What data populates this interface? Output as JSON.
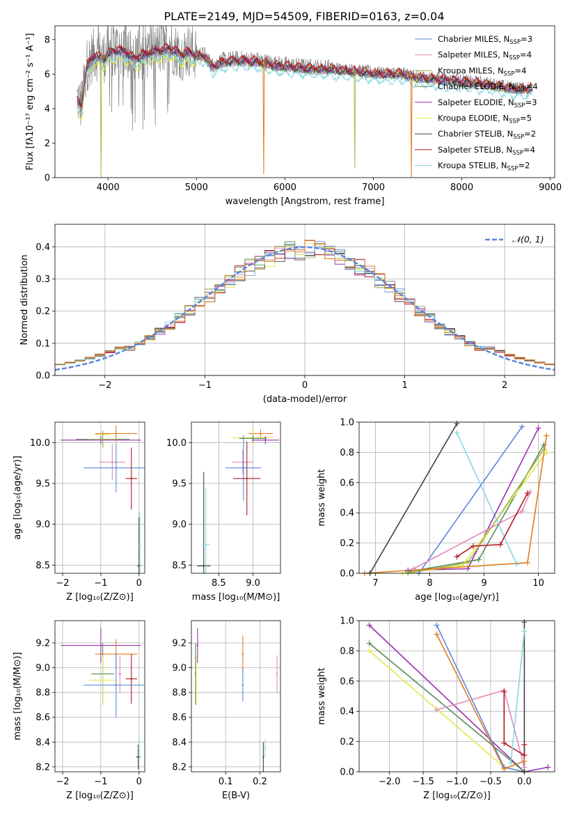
{
  "figure": {
    "title": "PLATE=2149, MJD=54509, FIBERID=0163, z=0.04"
  },
  "colors": {
    "chabrier_miles": "#5b86d8",
    "salpeter_miles": "#e08ab8",
    "kroupa_miles": "#a7b84a",
    "chabrier_elodie": "#5a8a5a",
    "salpeter_elodie": "#9a2fb0",
    "kroupa_elodie": "#e2e84a",
    "chabrier_stelib": "#404040",
    "salpeter_stelib": "#b2161e",
    "kroupa_stelib": "#86d8e0",
    "orange": "#e07b1e",
    "data_gray": "#808080",
    "normal_curve": "#5b86d8"
  },
  "chart_data": [
    {
      "id": "spectrum",
      "type": "line",
      "xlabel": "wavelength [Angstrom, rest frame]",
      "ylabel": "Flux [fλ10⁻¹⁷ erg cm⁻² s⁻¹ A⁻¹]",
      "xlim": [
        3400,
        9050
      ],
      "ylim": [
        0,
        8.8
      ],
      "xticks": [
        4000,
        5000,
        6000,
        7000,
        8000,
        9000
      ],
      "yticks": [
        0,
        2,
        4,
        6,
        8
      ],
      "grid": false,
      "legend_position": "top-right",
      "legend": [
        {
          "name": "Chabrier MILES, N",
          "sub": "SSP",
          "suffix": "=3",
          "color_key": "chabrier_miles"
        },
        {
          "name": "Salpeter MILES, N",
          "sub": "SSP",
          "suffix": "=4",
          "color_key": "salpeter_miles"
        },
        {
          "name": "Kroupa MILES, N",
          "sub": "SSP",
          "suffix": "=4",
          "color_key": "kroupa_miles"
        },
        {
          "name": "Chabrier ELODIE, N",
          "sub": "SSP",
          "suffix": "=4",
          "color_key": "chabrier_elodie"
        },
        {
          "name": "Salpeter ELODIE, N",
          "sub": "SSP",
          "suffix": "=3",
          "color_key": "salpeter_elodie"
        },
        {
          "name": "Kroupa ELODIE, N",
          "sub": "SSP",
          "suffix": "=5",
          "color_key": "kroupa_elodie"
        },
        {
          "name": "Chabrier STELIB, N",
          "sub": "SSP",
          "suffix": "=2",
          "color_key": "chabrier_stelib"
        },
        {
          "name": "Salpeter STELIB, N",
          "sub": "SSP",
          "suffix": "=4",
          "color_key": "salpeter_stelib"
        },
        {
          "name": "Kroupa STELIB, N",
          "sub": "SSP",
          "suffix": "=2",
          "color_key": "kroupa_stelib"
        }
      ],
      "continuum": {
        "x": [
          3650,
          3700,
          3760,
          3800,
          3850,
          3900,
          3950,
          4000,
          4100,
          4200,
          4300,
          4400,
          4500,
          4700,
          4850,
          4900,
          5000,
          5100,
          5175,
          5300,
          5500,
          5700,
          5900,
          6100,
          6300,
          6500,
          6700,
          6900,
          7100,
          7300,
          7500,
          7700,
          7900,
          8100,
          8300,
          8500,
          8700,
          8800
        ],
        "y": [
          4.6,
          4.2,
          6.5,
          6.9,
          7.2,
          7.1,
          7.0,
          7.3,
          7.5,
          7.4,
          7.0,
          7.2,
          7.4,
          7.6,
          7.2,
          7.4,
          7.2,
          7.1,
          6.5,
          6.8,
          6.9,
          6.8,
          6.6,
          6.5,
          6.4,
          6.4,
          6.3,
          6.2,
          6.1,
          6.1,
          5.9,
          5.8,
          5.7,
          5.6,
          5.5,
          5.3,
          5.2,
          5.3
        ]
      },
      "dips": [
        {
          "x": 5760,
          "y": 0.2,
          "color_key": "orange"
        },
        {
          "x": 6790,
          "y": 0.55,
          "color_key": "kroupa_miles"
        },
        {
          "x": 3920,
          "y": 0.0,
          "color_key": "kroupa_miles"
        },
        {
          "x": 7430,
          "y": 0.0,
          "color_key": "orange"
        }
      ]
    },
    {
      "id": "residuals",
      "type": "bar",
      "xlabel": "(data-model)/error",
      "ylabel": "Normed distribution",
      "xlim": [
        -2.5,
        2.5
      ],
      "ylim": [
        0,
        0.47
      ],
      "xticks": [
        -2,
        -1,
        0,
        1,
        2
      ],
      "yticks": [
        0.0,
        0.1,
        0.2,
        0.3,
        0.4
      ],
      "grid": true,
      "legend_position": "top-right",
      "legend": [
        {
          "name": "𝒩(0, 1)",
          "color_key": "normal_curve"
        }
      ],
      "bin_width": 0.1,
      "bin_start": -2.5,
      "normal_mean": 0,
      "normal_sigma": 1
    },
    {
      "id": "age_vs_Z",
      "type": "scatter",
      "xlabel": "Z [log₁₀(Z/Z⊙)]",
      "ylabel": "age  [log₁₀(age/yr)]",
      "xlim": [
        -2.2,
        0.15
      ],
      "ylim": [
        8.4,
        10.25
      ],
      "xticks": [
        -2,
        -1,
        0
      ],
      "yticks": [
        8.5,
        9.0,
        9.5,
        10.0
      ],
      "grid": true,
      "points": [
        {
          "x": -0.6,
          "y": 10.11,
          "xerr": 0.55,
          "yerr": 0.1,
          "color_key": "orange"
        },
        {
          "x": -0.95,
          "y": 10.1,
          "xerr": 0.2,
          "yerr": 0.05,
          "color_key": "kroupa_elodie"
        },
        {
          "x": -0.95,
          "y": 10.04,
          "xerr": 0.7,
          "yerr": 0.1,
          "color_key": "chabrier_elodie"
        },
        {
          "x": -1.0,
          "y": 10.03,
          "xerr": 1.05,
          "yerr": 0.05,
          "color_key": "salpeter_elodie"
        },
        {
          "x": -0.95,
          "y": 10.04,
          "xerr": 0.4,
          "yerr": 0.1,
          "color_key": "kroupa_miles"
        },
        {
          "x": -0.7,
          "y": 9.76,
          "xerr": 0.35,
          "yerr": 0.22,
          "color_key": "salpeter_miles"
        },
        {
          "x": -0.6,
          "y": 9.69,
          "xerr": 0.85,
          "yerr": 0.3,
          "color_key": "chabrier_miles"
        },
        {
          "x": -0.2,
          "y": 9.56,
          "xerr": 0.15,
          "yerr": 0.38,
          "color_key": "salpeter_stelib"
        },
        {
          "x": 0.0,
          "y": 8.49,
          "xerr": 0.05,
          "yerr": 0.6,
          "color_key": "chabrier_stelib"
        },
        {
          "x": 0.02,
          "y": 8.75,
          "xerr": 0.02,
          "yerr": 0.4,
          "color_key": "kroupa_stelib"
        }
      ]
    },
    {
      "id": "age_vs_mass",
      "type": "scatter",
      "xlabel": "mass [log₁₀(M/M⊙)]",
      "ylabel": "",
      "xlim": [
        8.1,
        9.4
      ],
      "ylim": [
        8.4,
        10.25
      ],
      "xticks": [
        8.5,
        9.0
      ],
      "yticks": [
        8.5,
        9.0,
        9.5,
        10.0
      ],
      "grid": true,
      "points": [
        {
          "x": 9.11,
          "y": 10.11,
          "xerr": 0.18,
          "yerr": 0.05,
          "color_key": "orange"
        },
        {
          "x": 9.0,
          "y": 10.06,
          "xerr": 0.3,
          "yerr": 0.1,
          "color_key": "kroupa_elodie"
        },
        {
          "x": 9.0,
          "y": 10.05,
          "xerr": 0.2,
          "yerr": 0.05,
          "color_key": "chabrier_elodie"
        },
        {
          "x": 9.18,
          "y": 10.03,
          "xerr": 0.2,
          "yerr": 0.05,
          "color_key": "salpeter_elodie"
        },
        {
          "x": 8.85,
          "y": 9.76,
          "xerr": 0.15,
          "yerr": 0.15,
          "color_key": "salpeter_miles"
        },
        {
          "x": 8.86,
          "y": 9.69,
          "xerr": 0.26,
          "yerr": 0.4,
          "color_key": "chabrier_miles"
        },
        {
          "x": 8.91,
          "y": 9.56,
          "xerr": 0.2,
          "yerr": 0.45,
          "color_key": "salpeter_stelib"
        },
        {
          "x": 8.28,
          "y": 8.49,
          "xerr": 0.1,
          "yerr": 1.15,
          "color_key": "chabrier_stelib"
        },
        {
          "x": 8.31,
          "y": 8.75,
          "xerr": 0.06,
          "yerr": 0.7,
          "color_key": "kroupa_stelib"
        }
      ]
    },
    {
      "id": "mass_weight_vs_age",
      "type": "line",
      "xlabel": "age  [log₁₀(age/yr)]",
      "ylabel": "mass weight",
      "xlim": [
        6.7,
        10.3
      ],
      "ylim": [
        0,
        1.0
      ],
      "xticks": [
        7,
        8,
        9,
        10
      ],
      "yticks": [
        0.0,
        0.2,
        0.4,
        0.6,
        0.8,
        1.0
      ],
      "grid": true,
      "series": [
        {
          "color_key": "chabrier_stelib",
          "x": [
            6.9,
            8.5
          ],
          "y": [
            0.0,
            0.99
          ]
        },
        {
          "color_key": "kroupa_stelib",
          "x": [
            8.5,
            9.6
          ],
          "y": [
            0.93,
            0.06
          ]
        },
        {
          "color_key": "chabrier_miles",
          "x": [
            7.8,
            9.7
          ],
          "y": [
            0.0,
            0.97
          ]
        },
        {
          "color_key": "salpeter_elodie",
          "x": [
            7.6,
            8.7,
            10.0
          ],
          "y": [
            0.02,
            0.03,
            0.96
          ]
        },
        {
          "color_key": "chabrier_elodie",
          "x": [
            7.6,
            8.9,
            10.1
          ],
          "y": [
            0.01,
            0.09,
            0.85
          ]
        },
        {
          "color_key": "kroupa_elodie",
          "x": [
            7.5,
            8.6,
            10.15
          ],
          "y": [
            0.0,
            0.05,
            0.8
          ]
        },
        {
          "color_key": "kroupa_miles",
          "x": [
            7.6,
            8.7,
            10.1
          ],
          "y": [
            0.0,
            0.07,
            0.82
          ]
        },
        {
          "color_key": "salpeter_miles",
          "x": [
            7.7,
            9.7,
            9.85
          ],
          "y": [
            0.03,
            0.41,
            0.54
          ]
        },
        {
          "color_key": "salpeter_stelib",
          "x": [
            8.5,
            8.8,
            9.3,
            9.8
          ],
          "y": [
            0.11,
            0.18,
            0.19,
            0.53
          ]
        },
        {
          "color_key": "orange",
          "x": [
            6.8,
            9.8,
            10.15
          ],
          "y": [
            0.0,
            0.07,
            0.91
          ]
        }
      ]
    },
    {
      "id": "mass_vs_Z",
      "type": "scatter",
      "xlabel": "Z [log₁₀(Z/Z⊙)]",
      "ylabel": "mass [log₁₀(M/M⊙)]",
      "xlim": [
        -2.2,
        0.15
      ],
      "ylim": [
        8.16,
        9.38
      ],
      "xticks": [
        -2,
        -1,
        0
      ],
      "yticks": [
        8.2,
        8.4,
        8.6,
        8.8,
        9.0,
        9.2
      ],
      "grid": true,
      "points": [
        {
          "x": -1.0,
          "y": 9.18,
          "xerr": 1.05,
          "yerr": 0.14,
          "color_key": "salpeter_elodie"
        },
        {
          "x": -0.6,
          "y": 9.11,
          "xerr": 0.55,
          "yerr": 0.12,
          "color_key": "orange"
        },
        {
          "x": -0.95,
          "y": 8.95,
          "xerr": 0.3,
          "yerr": 0.25,
          "color_key": "chabrier_elodie"
        },
        {
          "x": -0.95,
          "y": 8.9,
          "xerr": 0.35,
          "yerr": 0.2,
          "color_key": "kroupa_elodie"
        },
        {
          "x": -0.2,
          "y": 8.91,
          "xerr": 0.15,
          "yerr": 0.2,
          "color_key": "salpeter_stelib"
        },
        {
          "x": -0.6,
          "y": 8.86,
          "xerr": 0.85,
          "yerr": 0.26,
          "color_key": "chabrier_miles"
        },
        {
          "x": -0.5,
          "y": 8.95,
          "xerr": 0.05,
          "yerr": 0.15,
          "color_key": "salpeter_miles"
        },
        {
          "x": -0.02,
          "y": 8.28,
          "xerr": 0.06,
          "yerr": 0.1,
          "color_key": "chabrier_stelib"
        },
        {
          "x": 0.0,
          "y": 8.35,
          "xerr": 0.02,
          "yerr": 0.1,
          "color_key": "kroupa_stelib"
        }
      ]
    },
    {
      "id": "mass_vs_ebv",
      "type": "scatter",
      "xlabel": "E(B-V)",
      "ylabel": "",
      "xlim": [
        0.0,
        0.26
      ],
      "ylim": [
        8.16,
        9.38
      ],
      "xticks": [
        0.1,
        0.2
      ],
      "yticks": [
        8.2,
        8.4,
        8.6,
        8.8,
        9.0,
        9.2
      ],
      "grid": true,
      "points": [
        {
          "x": 0.018,
          "y": 9.18,
          "xerr": 0,
          "yerr": 0.14,
          "color_key": "salpeter_elodie"
        },
        {
          "x": 0.012,
          "y": 8.95,
          "xerr": 0,
          "yerr": 0.25,
          "color_key": "chabrier_elodie"
        },
        {
          "x": 0.014,
          "y": 8.9,
          "xerr": 0,
          "yerr": 0.2,
          "color_key": "kroupa_elodie"
        },
        {
          "x": 0.15,
          "y": 9.11,
          "xerr": 0,
          "yerr": 0.15,
          "color_key": "orange"
        },
        {
          "x": 0.15,
          "y": 8.86,
          "xerr": 0,
          "yerr": 0.13,
          "color_key": "chabrier_miles"
        },
        {
          "x": 0.25,
          "y": 8.95,
          "xerr": 0,
          "yerr": 0.15,
          "color_key": "salpeter_miles"
        },
        {
          "x": 0.21,
          "y": 8.28,
          "xerr": 0,
          "yerr": 0.12,
          "color_key": "chabrier_stelib"
        },
        {
          "x": 0.215,
          "y": 8.35,
          "xerr": 0,
          "yerr": 0.07,
          "color_key": "kroupa_stelib"
        }
      ]
    },
    {
      "id": "mass_weight_vs_Z",
      "type": "line",
      "xlabel": "Z [log₁₀(Z/Z⊙)]",
      "ylabel": "mass weight",
      "xlim": [
        -2.45,
        0.45
      ],
      "ylim": [
        0,
        1.0
      ],
      "xticks": [
        -2.0,
        -1.5,
        -1.0,
        -0.5,
        0.0
      ],
      "yticks": [
        0.0,
        0.2,
        0.4,
        0.6,
        0.8,
        1.0
      ],
      "grid": true,
      "series": [
        {
          "color_key": "salpeter_elodie",
          "x": [
            -2.3,
            0.0,
            0.35
          ],
          "y": [
            0.97,
            0.0,
            0.03
          ]
        },
        {
          "color_key": "chabrier_elodie",
          "x": [
            -2.3,
            0.0
          ],
          "y": [
            0.85,
            0.0
          ]
        },
        {
          "color_key": "kroupa_elodie",
          "x": [
            -2.3,
            -0.3,
            0.0
          ],
          "y": [
            0.8,
            0.03,
            0.0
          ]
        },
        {
          "color_key": "chabrier_miles",
          "x": [
            -1.3,
            -0.3,
            0.0
          ],
          "y": [
            0.97,
            0.03,
            0.0
          ]
        },
        {
          "color_key": "orange",
          "x": [
            -1.3,
            -0.3,
            0.0
          ],
          "y": [
            0.91,
            0.02,
            0.07
          ]
        },
        {
          "color_key": "salpeter_miles",
          "x": [
            -1.3,
            -0.3,
            0.0
          ],
          "y": [
            0.41,
            0.54,
            0.03
          ]
        },
        {
          "color_key": "salpeter_stelib",
          "x": [
            -0.3,
            -0.3,
            0.0,
            0.0
          ],
          "y": [
            0.53,
            0.19,
            0.11,
            0.18
          ]
        },
        {
          "color_key": "chabrier_stelib",
          "x": [
            0.0,
            0.0
          ],
          "y": [
            0.99,
            0.0
          ]
        },
        {
          "color_key": "kroupa_stelib",
          "x": [
            0.0,
            -0.2
          ],
          "y": [
            0.93,
            0.06
          ]
        }
      ]
    }
  ]
}
